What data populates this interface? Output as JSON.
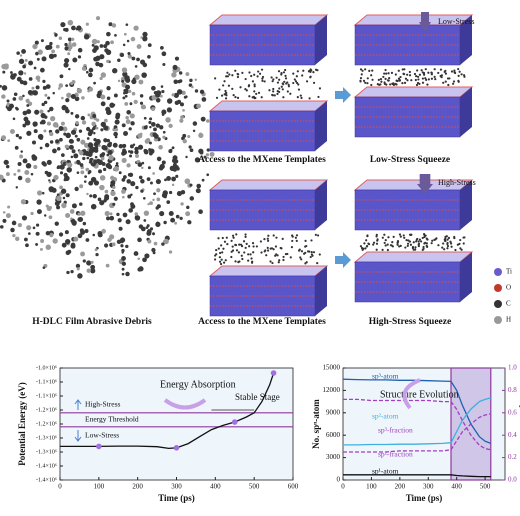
{
  "figure": {
    "panels": [
      "Access to the MXene Templates",
      "Low-Stress Squeeze",
      "Access to the MXene Templates",
      "High-Stress Squeeze",
      "H-DLC Film Abrasive Debris"
    ],
    "arrows": [
      "Low-Stress",
      "High-Stress"
    ],
    "legend": [
      {
        "label": "Ti",
        "color": "#6a5acd"
      },
      {
        "label": "O",
        "color": "#c0392b"
      },
      {
        "label": "C",
        "color": "#333333"
      },
      {
        "label": "H",
        "color": "#999999"
      }
    ]
  },
  "chart_data": [
    {
      "type": "line",
      "xlabel": "Time (ps)",
      "ylabel": "Potential Energy (eV)",
      "xlim": [
        0,
        600
      ],
      "ylim": [
        -1400000,
        -1000000
      ],
      "xticks": [
        0,
        100,
        200,
        300,
        400,
        500,
        600
      ],
      "yticks": [
        {
          "value": -1000000,
          "label": "-1.0×10⁶"
        },
        {
          "value": -1050000,
          "label": "-1.1×10⁶"
        },
        {
          "value": -1100000,
          "label": "-1.1×10⁶"
        },
        {
          "value": -1150000,
          "label": "-1.2×10⁶"
        },
        {
          "value": -1200000,
          "label": "-1.2×10⁶"
        },
        {
          "value": -1250000,
          "label": "-1.3×10⁶"
        },
        {
          "value": -1300000,
          "label": "-1.3×10⁶"
        },
        {
          "value": -1350000,
          "label": "-1.4×10⁶"
        },
        {
          "value": -1400000,
          "label": "-1.4×10⁶"
        }
      ],
      "threshold_lines": {
        "label": "Energy Threshold",
        "values": [
          -1160000,
          -1210000
        ],
        "color": "#8e3a9d"
      },
      "annotations": [
        "Energy Absorption",
        "Stable Stage",
        "High-Stress",
        "Low-Stress"
      ],
      "series": [
        {
          "x": [
            0,
            50,
            100,
            150,
            200,
            250,
            280,
            300,
            330,
            360,
            390,
            420,
            450,
            480,
            500,
            520,
            540,
            550
          ],
          "values": [
            -1280000,
            -1280000,
            -1280000,
            -1279000,
            -1279000,
            -1281000,
            -1287000,
            -1285000,
            -1270000,
            -1245000,
            -1220000,
            -1205000,
            -1193000,
            -1175000,
            -1160000,
            -1120000,
            -1060000,
            -1018000
          ],
          "color": "#111111"
        },
        {
          "x": [
            100,
            300,
            450,
            550
          ],
          "values": [
            -1280000,
            -1285000,
            -1193000,
            -1018000
          ],
          "color": "#a070e0",
          "marker": true
        }
      ]
    },
    {
      "type": "line",
      "xlabel": "Time (ps)",
      "ylabel": "No. spⁿ-atom",
      "y2label": "spⁿ-fraction",
      "xlim": [
        0,
        570
      ],
      "ylim": [
        0,
        15000
      ],
      "y2lim": [
        0,
        1
      ],
      "xticks": [
        0,
        100,
        200,
        300,
        400,
        500
      ],
      "yticks": [
        0,
        3000,
        6000,
        9000,
        12000,
        15000
      ],
      "y2ticks": [
        {
          "value": 0,
          "label": "0.0"
        },
        0.2,
        0.4,
        0.6,
        0.8,
        {
          "value": 1,
          "label": "1.0"
        }
      ],
      "highlight_range": [
        380,
        520
      ],
      "annotations": [
        "Structure Evolution"
      ],
      "x": [
        0,
        50,
        100,
        150,
        200,
        250,
        300,
        350,
        380,
        400,
        420,
        450,
        480,
        500,
        520
      ],
      "series": [
        {
          "name": "sp³-atom",
          "color": "#2060b0",
          "values": [
            13500,
            13450,
            13400,
            13400,
            13350,
            13350,
            13300,
            13250,
            13200,
            12000,
            10000,
            7500,
            5800,
            5200,
            4900
          ]
        },
        {
          "name": "sp²-atom",
          "color": "#3fb0e0",
          "values": [
            4700,
            4700,
            4750,
            4750,
            4800,
            4800,
            4850,
            4900,
            5000,
            6500,
            8000,
            9500,
            10500,
            10800,
            11000
          ]
        },
        {
          "name": "sp¹-atom",
          "color": "#111111",
          "values": [
            700,
            700,
            700,
            700,
            700,
            700,
            700,
            700,
            700,
            600,
            550,
            500,
            450,
            450,
            450
          ]
        },
        {
          "name": "sp³-fraction",
          "color": "#a040c0",
          "axis": "y2",
          "dash": true,
          "values": [
            0.72,
            0.72,
            0.71,
            0.71,
            0.71,
            0.71,
            0.71,
            0.7,
            0.7,
            0.63,
            0.53,
            0.4,
            0.31,
            0.28,
            0.27
          ]
        },
        {
          "name": "sp²-fraction",
          "color": "#a040c0",
          "axis": "y2",
          "dash": true,
          "values": [
            0.25,
            0.25,
            0.25,
            0.25,
            0.26,
            0.26,
            0.26,
            0.26,
            0.27,
            0.35,
            0.43,
            0.5,
            0.56,
            0.58,
            0.59
          ]
        }
      ]
    }
  ]
}
